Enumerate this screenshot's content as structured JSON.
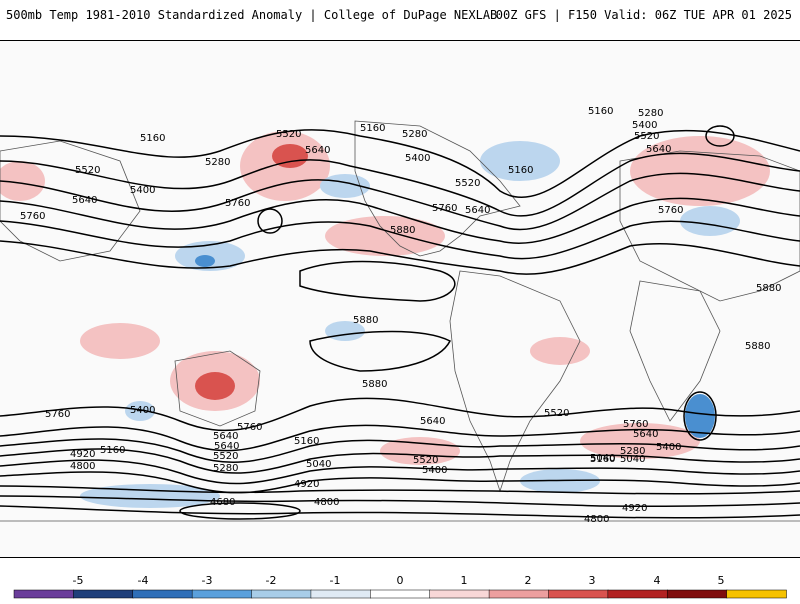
{
  "header": {
    "title_left": "500mb Temp 1981-2010 Standardized Anomaly | College of DuPage NEXLAB",
    "title_right": "00Z GFS | F150 Valid: 06Z TUE APR 01 2025"
  },
  "colorbar": {
    "labels": [
      "-5",
      "-4",
      "-3",
      "-2",
      "-1",
      "0",
      "1",
      "2",
      "3",
      "4",
      "5"
    ],
    "colors": [
      "#6a3d9a",
      "#1f3f7a",
      "#2f6fb8",
      "#5aa0dc",
      "#a8cde8",
      "#dfeaf4",
      "#ffffff",
      "#f8d7d7",
      "#ec9f9f",
      "#d9534f",
      "#b22222",
      "#7f0d0d",
      "#f6c200"
    ]
  },
  "map": {
    "contour_labels": [
      "5160",
      "5520",
      "5640",
      "5280",
      "5160",
      "5280",
      "5400",
      "5160",
      "5160",
      "5280",
      "5400",
      "5520",
      "5640",
      "5520",
      "5400",
      "5640",
      "5760",
      "5760",
      "5520",
      "5760",
      "5640",
      "5880",
      "5880",
      "5880",
      "5880",
      "5880",
      "5760",
      "5760",
      "5400",
      "5760",
      "5640",
      "5520",
      "5160",
      "5040",
      "4920",
      "4800",
      "5640",
      "5520",
      "5280",
      "5160",
      "5040",
      "4920",
      "4800",
      "4680",
      "5640",
      "5520",
      "5400",
      "5760",
      "5640",
      "5280",
      "5160",
      "5040",
      "5400",
      "4920",
      "4800"
    ],
    "colors": {
      "ocean": "#fafafa",
      "anomaly_warm": "#f4c2c2",
      "anomaly_warm_strong": "#d9534f",
      "anomaly_cold": "#bcd6ee",
      "anomaly_cold_strong": "#4a8fd0",
      "contour": "#000000",
      "coastline": "#555555"
    }
  }
}
